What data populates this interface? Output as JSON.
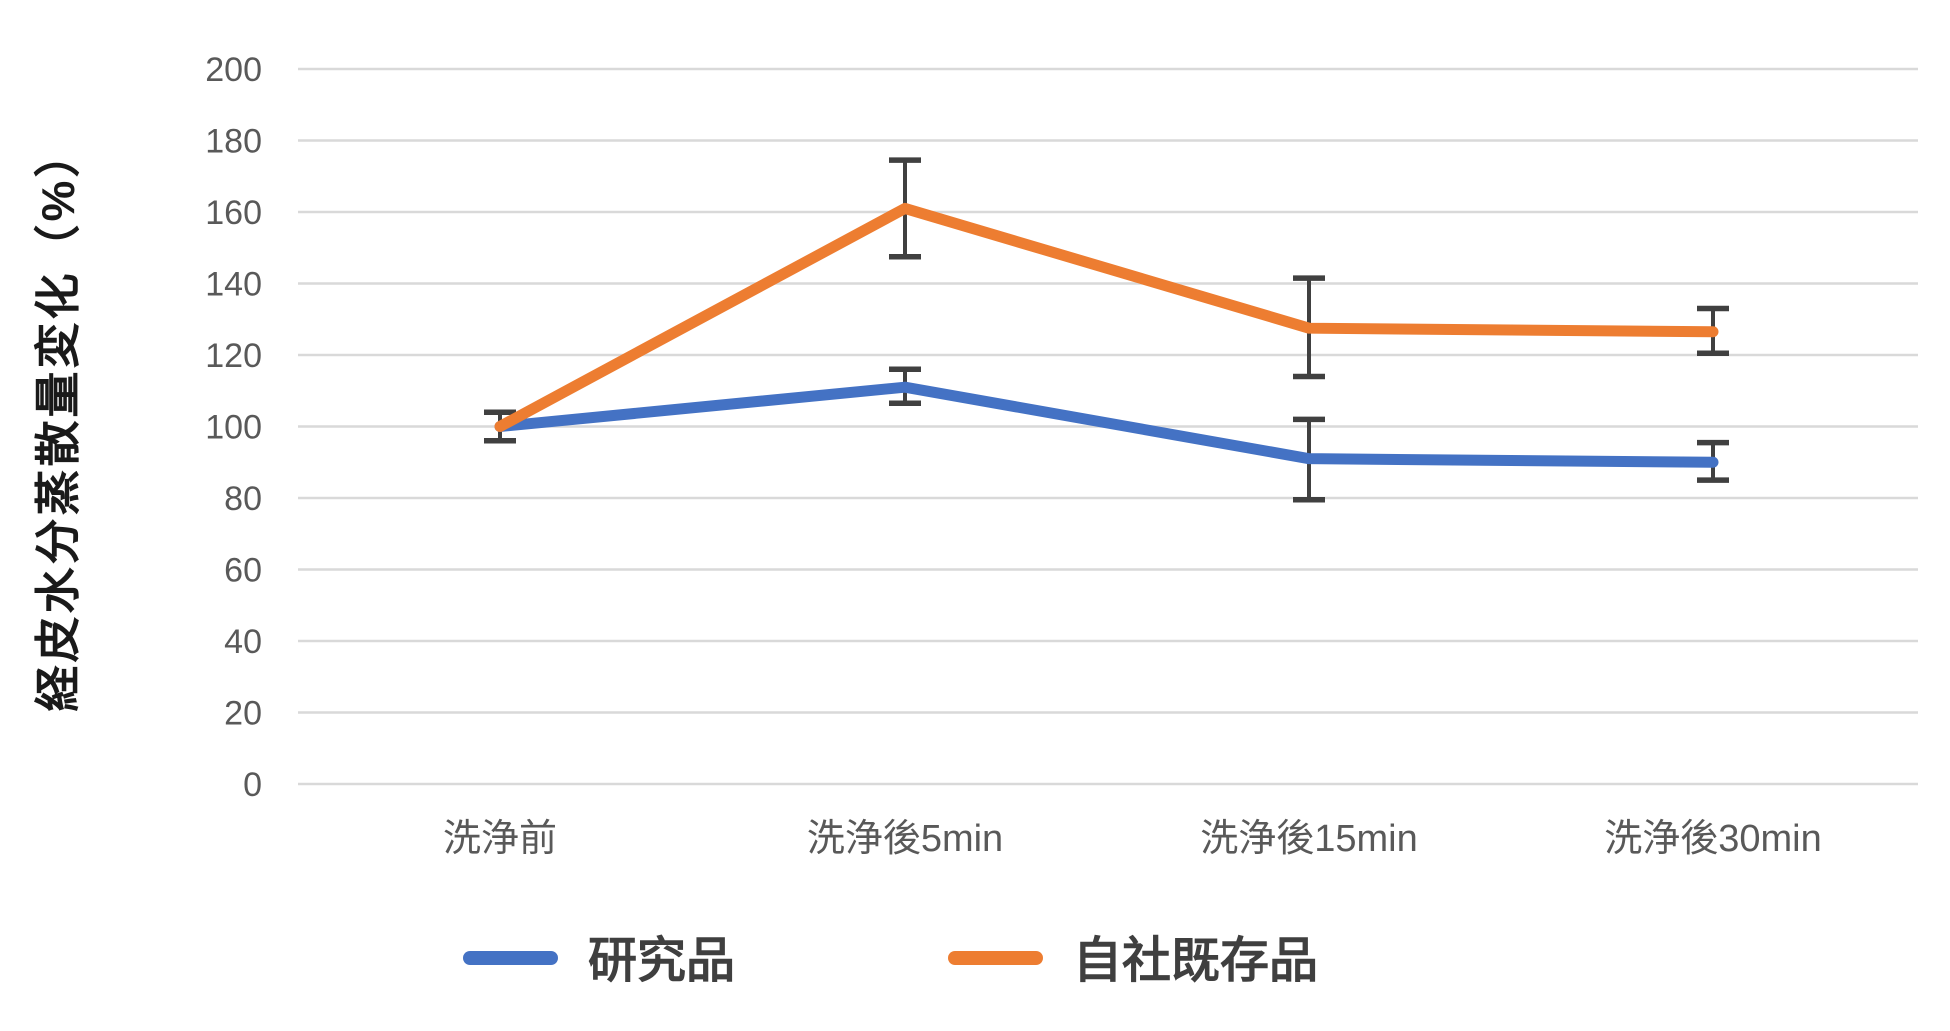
{
  "chart_data": {
    "type": "line",
    "title": "",
    "ylabel": "経皮水分蒸散量変化（%）",
    "xlabel": "",
    "ylim": [
      0,
      200
    ],
    "ytick_step": 20,
    "y_ticks": [
      0,
      20,
      40,
      60,
      80,
      100,
      120,
      140,
      160,
      180,
      200
    ],
    "grid": true,
    "legend_position": "bottom",
    "categories": [
      "洗浄前",
      "洗浄後5min",
      "洗浄後15min",
      "洗浄後30min"
    ],
    "series": [
      {
        "name": "研究品",
        "color": "#4472C4",
        "values": [
          100,
          111,
          91,
          90
        ],
        "error_low": [
          96,
          106.5,
          79.5,
          85
        ],
        "error_high": [
          104,
          116,
          102,
          95.5
        ]
      },
      {
        "name": "自社既存品",
        "color": "#ED7D31",
        "values": [
          100,
          161,
          127.5,
          126.5
        ],
        "error_low": [
          96,
          147.5,
          114,
          120.5
        ],
        "error_high": [
          104,
          174.5,
          141.5,
          133
        ]
      }
    ],
    "style": {
      "gridline_color": "#D9D9D9",
      "error_bar_color": "#404040",
      "tick_label_color": "#595959",
      "axis_title_color": "#1a1a1a",
      "legend_text_color": "#3f3f3f"
    }
  }
}
